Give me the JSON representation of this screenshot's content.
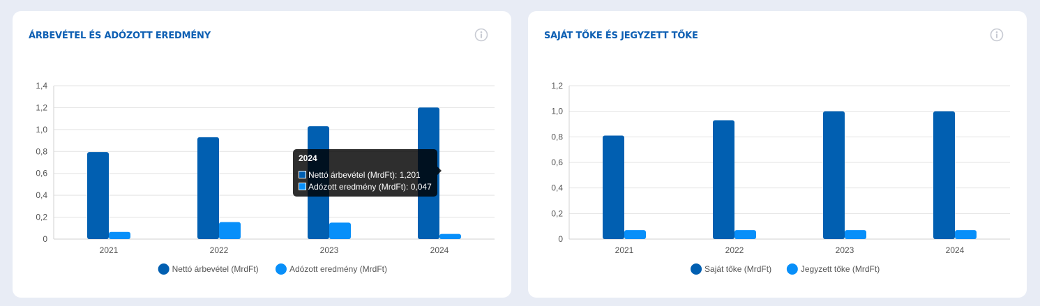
{
  "cards": [
    {
      "title": "ÁRBEVÉTEL ÉS ADÓZOTT EREDMÉNY",
      "icon": "info-icon",
      "tooltip": {
        "title": "2024",
        "rows": [
          {
            "label": "Nettó árbevétel (MrdFt): 1,201",
            "color": "#015fb1"
          },
          {
            "label": "Adózott eredmény (MrdFt): 0,047",
            "color": "#088ff9"
          }
        ]
      }
    },
    {
      "title": "SAJÁT TŐKE ÉS JEGYZETT TŐKE",
      "icon": "info-icon"
    }
  ],
  "chart_data": [
    {
      "type": "bar",
      "categories": [
        "2021",
        "2022",
        "2023",
        "2024"
      ],
      "series": [
        {
          "name": "Nettó árbevétel (MrdFt)",
          "values": [
            0.795,
            0.93,
            1.03,
            1.201
          ],
          "color": "#015fb1"
        },
        {
          "name": "Adózott eredmény (MrdFt)",
          "values": [
            0.065,
            0.155,
            0.15,
            0.047
          ],
          "color": "#088ff9"
        }
      ],
      "ylim": [
        0,
        1.4
      ],
      "yticks": [
        "0",
        "0,2",
        "0,4",
        "0,6",
        "0,8",
        "1,0",
        "1,2",
        "1,4"
      ],
      "grid": true,
      "legend": "bottom"
    },
    {
      "type": "bar",
      "categories": [
        "2021",
        "2022",
        "2023",
        "2024"
      ],
      "series": [
        {
          "name": "Saját tőke (MrdFt)",
          "values": [
            0.81,
            0.93,
            1.0,
            1.0
          ],
          "color": "#015fb1"
        },
        {
          "name": "Jegyzett tőke (MrdFt)",
          "values": [
            0.07,
            0.07,
            0.07,
            0.07
          ],
          "color": "#088ff9"
        }
      ],
      "ylim": [
        0,
        1.2
      ],
      "yticks": [
        "0",
        "0,2",
        "0,4",
        "0,6",
        "0,8",
        "1,0",
        "1,2"
      ],
      "grid": true,
      "legend": "bottom"
    }
  ]
}
